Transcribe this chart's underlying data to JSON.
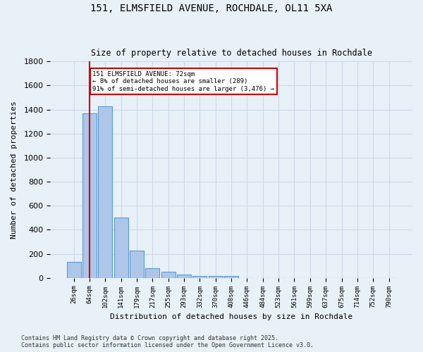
{
  "title_line1": "151, ELMSFIELD AVENUE, ROCHDALE, OL11 5XA",
  "title_line2": "Size of property relative to detached houses in Rochdale",
  "xlabel": "Distribution of detached houses by size in Rochdale",
  "ylabel": "Number of detached properties",
  "categories": [
    "26sqm",
    "64sqm",
    "102sqm",
    "141sqm",
    "179sqm",
    "217sqm",
    "255sqm",
    "293sqm",
    "332sqm",
    "370sqm",
    "408sqm",
    "446sqm",
    "484sqm",
    "523sqm",
    "561sqm",
    "599sqm",
    "637sqm",
    "675sqm",
    "714sqm",
    "752sqm",
    "790sqm"
  ],
  "values": [
    130,
    1370,
    1430,
    500,
    225,
    80,
    48,
    28,
    18,
    18,
    18,
    0,
    0,
    0,
    0,
    0,
    0,
    0,
    0,
    0,
    0
  ],
  "bar_color": "#aec6e8",
  "bar_edge_color": "#5b9bd5",
  "grid_color": "#d0d8e8",
  "background_color": "#e8f0f8",
  "annotation_box_text": "151 ELMSFIELD AVENUE: 72sqm\n← 8% of detached houses are smaller (289)\n91% of semi-detached houses are larger (3,476) →",
  "annotation_box_color": "#ffffff",
  "annotation_box_edge_color": "#cc0000",
  "property_line_x": 1,
  "ylim": [
    0,
    1800
  ],
  "yticks": [
    0,
    200,
    400,
    600,
    800,
    1000,
    1200,
    1400,
    1600,
    1800
  ],
  "footnote_line1": "Contains HM Land Registry data © Crown copyright and database right 2025.",
  "footnote_line2": "Contains public sector information licensed under the Open Government Licence v3.0."
}
